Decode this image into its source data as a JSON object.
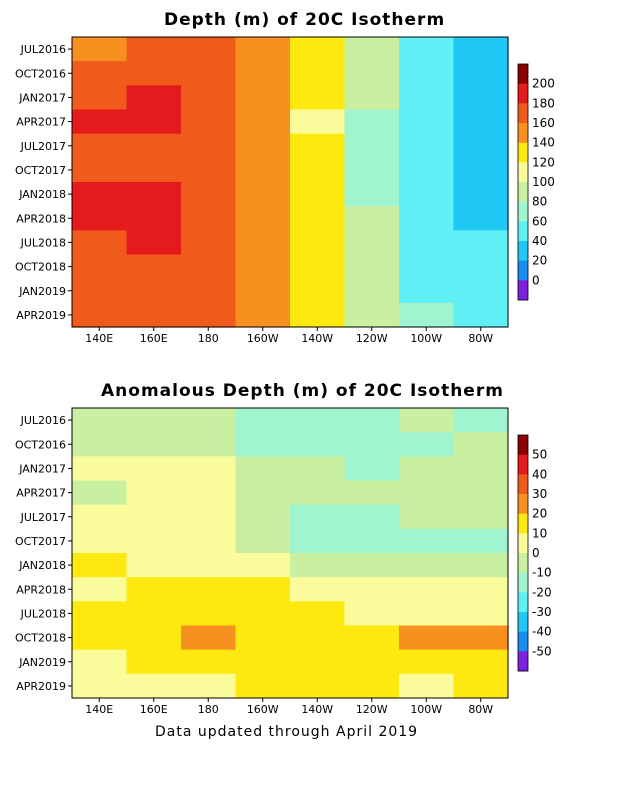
{
  "chart_data": [
    {
      "type": "heatmap",
      "title": "Depth (m) of 20C Isotherm",
      "xlabel": "",
      "ylabel": "",
      "x_ticks": [
        "140E",
        "160E",
        "180",
        "160W",
        "140W",
        "120W",
        "100W",
        "80W"
      ],
      "y_ticks": [
        "JUL2016",
        "OCT2016",
        "JAN2017",
        "APR2017",
        "JUL2017",
        "OCT2017",
        "JAN2018",
        "APR2018",
        "JUL2018",
        "OCT2018",
        "JAN2019",
        "APR2019"
      ],
      "colorbar": {
        "labels": [
          "200",
          "180",
          "160",
          "140",
          "120",
          "100",
          "80",
          "60",
          "40",
          "20",
          "0"
        ],
        "colors": [
          "#8b0000",
          "#e41a1c",
          "#f05a1a",
          "#f7901e",
          "#fde910",
          "#fafb9a",
          "#c8f0a0",
          "#a0f5d0",
          "#5ff0f5",
          "#1fc8f5",
          "#1a8cf0",
          "#7f1fe0"
        ]
      },
      "columns": [
        {
          "x": "140E",
          "values": [
            160,
            170,
            175,
            185,
            178,
            172,
            182,
            188,
            180,
            170,
            165,
            180
          ]
        },
        {
          "x": "160E",
          "values": [
            165,
            172,
            182,
            188,
            180,
            175,
            190,
            190,
            182,
            175,
            180,
            178
          ]
        },
        {
          "x": "180",
          "values": [
            170,
            168,
            178,
            180,
            172,
            168,
            178,
            180,
            172,
            168,
            175,
            172
          ]
        },
        {
          "x": "160W",
          "values": [
            158,
            155,
            150,
            148,
            150,
            152,
            155,
            158,
            155,
            150,
            152,
            155
          ]
        },
        {
          "x": "140W",
          "values": [
            140,
            135,
            125,
            120,
            125,
            130,
            128,
            128,
            130,
            135,
            132,
            128
          ]
        },
        {
          "x": "120W",
          "values": [
            100,
            95,
            85,
            80,
            78,
            78,
            80,
            85,
            88,
            92,
            90,
            88
          ]
        },
        {
          "x": "100W",
          "values": [
            55,
            55,
            50,
            50,
            50,
            48,
            45,
            52,
            55,
            58,
            60,
            62
          ]
        },
        {
          "x": "80W",
          "values": [
            30,
            32,
            30,
            35,
            40,
            38,
            35,
            40,
            45,
            50,
            48,
            52
          ]
        }
      ]
    },
    {
      "type": "heatmap",
      "title": "Anomalous Depth (m) of 20C Isotherm",
      "xlabel": "",
      "ylabel": "",
      "x_ticks": [
        "140E",
        "160E",
        "180",
        "160W",
        "140W",
        "120W",
        "100W",
        "80W"
      ],
      "y_ticks": [
        "JUL2016",
        "OCT2016",
        "JAN2017",
        "APR2017",
        "JUL2017",
        "OCT2017",
        "JAN2018",
        "APR2018",
        "JUL2018",
        "OCT2018",
        "JAN2019",
        "APR2019"
      ],
      "colorbar": {
        "labels": [
          "50",
          "40",
          "30",
          "20",
          "10",
          "0",
          "-10",
          "-20",
          "-30",
          "-40",
          "-50"
        ],
        "colors": [
          "#8b0000",
          "#e41a1c",
          "#f05a1a",
          "#f7901e",
          "#fde910",
          "#fafb9a",
          "#c8f0a0",
          "#a0f5d0",
          "#5ff0f5",
          "#1fc8f5",
          "#1a8cf0",
          "#7f1fe0"
        ]
      },
      "columns": [
        {
          "x": "140E",
          "values": [
            -5,
            -8,
            5,
            -2,
            2,
            8,
            12,
            8,
            12,
            15,
            8,
            5
          ]
        },
        {
          "x": "160E",
          "values": [
            -8,
            -5,
            2,
            5,
            3,
            5,
            10,
            15,
            15,
            18,
            12,
            8
          ]
        },
        {
          "x": "180",
          "values": [
            -5,
            -5,
            2,
            8,
            5,
            2,
            5,
            15,
            18,
            22,
            15,
            10
          ]
        },
        {
          "x": "160W",
          "values": [
            -12,
            -10,
            -5,
            0,
            -2,
            -5,
            2,
            12,
            15,
            18,
            15,
            12
          ]
        },
        {
          "x": "140W",
          "values": [
            -15,
            -12,
            -8,
            -5,
            -10,
            -12,
            -2,
            10,
            12,
            15,
            18,
            15
          ]
        },
        {
          "x": "120W",
          "values": [
            -12,
            -15,
            -10,
            -8,
            -12,
            -15,
            -5,
            5,
            8,
            15,
            18,
            12
          ]
        },
        {
          "x": "100W",
          "values": [
            -8,
            -12,
            -5,
            -5,
            -8,
            -12,
            -8,
            2,
            8,
            22,
            15,
            10
          ]
        },
        {
          "x": "80W",
          "values": [
            -10,
            -8,
            0,
            -5,
            -5,
            -10,
            -8,
            2,
            5,
            22,
            18,
            12
          ]
        }
      ]
    }
  ],
  "footer": "Data updated through April 2019"
}
